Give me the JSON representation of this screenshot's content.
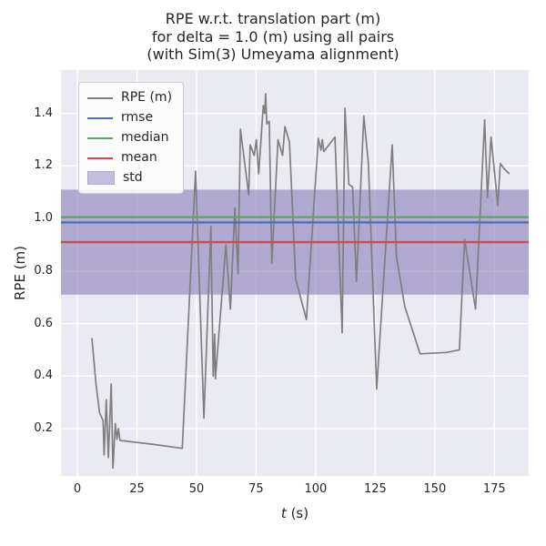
{
  "colors": {
    "figure_bg": "#ffffff",
    "axes_bg": "#eaeaf2",
    "grid": "#ffffff",
    "text": "#262626",
    "rpe_line": "#7f7f7f",
    "rmse_line": "#4c72b0",
    "median_line": "#55a868",
    "mean_line": "#c44e52",
    "std_band": "#8172b2",
    "legend_border": "#cccccc"
  },
  "chart_data": {
    "type": "line",
    "title": "RPE w.r.t. translation part (m)\nfor delta = 1.0 (m) using all pairs\n(with Sim(3) Umeyama alignment)",
    "title_lines": [
      "RPE w.r.t. translation part (m)",
      "for delta = 1.0 (m) using all pairs",
      "(with Sim(3) Umeyama alignment)"
    ],
    "xlabel": "t (s)",
    "xlabel_italic": "t",
    "xlabel_rest": " (s)",
    "ylabel": "RPE (m)",
    "xlim": [
      -6.9,
      189.4
    ],
    "ylim": [
      0.02,
      1.565
    ],
    "xticks": [
      0,
      25,
      50,
      75,
      100,
      125,
      150,
      175
    ],
    "yticks": [
      0.2,
      0.4,
      0.6,
      0.8,
      1.0,
      1.2,
      1.4
    ],
    "grid": true,
    "legend_position": "upper-left",
    "statistics": {
      "rmse": 0.985,
      "median": 1.005,
      "mean": 0.91,
      "std": 0.2,
      "std_band_range": [
        0.71,
        1.11
      ]
    },
    "series": [
      {
        "name": "RPE (m)",
        "kind": "line",
        "color": "#7f7f7f",
        "x": [
          6.1,
          7.8,
          9.3,
          10.8,
          11.2,
          12.1,
          13.0,
          14.2,
          14.9,
          15.9,
          16.6,
          17.2,
          17.9,
          32.0,
          44.0,
          49.6,
          53.1,
          56.0,
          57.0,
          57.6,
          57.9,
          62.3,
          64.2,
          66.1,
          67.4,
          68.4,
          71.9,
          72.5,
          74.2,
          75.1,
          76.1,
          78.0,
          78.6,
          79.0,
          79.5,
          80.5,
          81.6,
          84.2,
          86.1,
          87.1,
          89.0,
          91.6,
          96.1,
          101.1,
          102.2,
          102.8,
          103.4,
          108.1,
          111.1,
          112.3,
          113.9,
          115.5,
          117.1,
          120.2,
          122.1,
          125.6,
          132.1,
          133.9,
          137.4,
          143.8,
          155.0,
          160.3,
          162.5,
          167.1,
          170.9,
          172.1,
          173.6,
          176.4,
          177.5,
          179.0,
          181.3
        ],
        "y": [
          0.545,
          0.37,
          0.26,
          0.23,
          0.1,
          0.31,
          0.09,
          0.37,
          0.05,
          0.22,
          0.16,
          0.2,
          0.155,
          0.14,
          0.125,
          1.18,
          0.24,
          0.97,
          0.4,
          0.56,
          0.39,
          0.9,
          0.655,
          1.04,
          0.79,
          1.34,
          1.09,
          1.28,
          1.24,
          1.3,
          1.17,
          1.43,
          1.4,
          1.475,
          1.36,
          1.37,
          0.83,
          1.3,
          1.24,
          1.35,
          1.29,
          0.77,
          0.615,
          1.305,
          1.26,
          1.3,
          1.255,
          1.31,
          0.565,
          1.42,
          1.13,
          1.12,
          0.76,
          1.39,
          1.21,
          0.35,
          1.28,
          0.855,
          0.665,
          0.485,
          0.49,
          0.5,
          0.92,
          0.655,
          1.375,
          1.08,
          1.31,
          1.05,
          1.21,
          1.19,
          1.17
        ]
      },
      {
        "name": "rmse",
        "kind": "hline",
        "color": "#4c72b0",
        "value": 0.985
      },
      {
        "name": "median",
        "kind": "hline",
        "color": "#55a868",
        "value": 1.005
      },
      {
        "name": "mean",
        "kind": "hline",
        "color": "#c44e52",
        "value": 0.91
      },
      {
        "name": "std",
        "kind": "hband",
        "color": "#8172b2",
        "alpha": 0.55,
        "range": [
          0.71,
          1.11
        ]
      }
    ],
    "legend": [
      {
        "label": "RPE (m)",
        "swatch": "line",
        "color": "#7f7f7f"
      },
      {
        "label": "rmse",
        "swatch": "line",
        "color": "#4c72b0"
      },
      {
        "label": "median",
        "swatch": "line",
        "color": "#55a868"
      },
      {
        "label": "mean",
        "swatch": "line",
        "color": "#c44e52"
      },
      {
        "label": "std",
        "swatch": "patch",
        "color": "rgba(129,114,178,0.45)",
        "border": "#b2aad2"
      }
    ]
  }
}
